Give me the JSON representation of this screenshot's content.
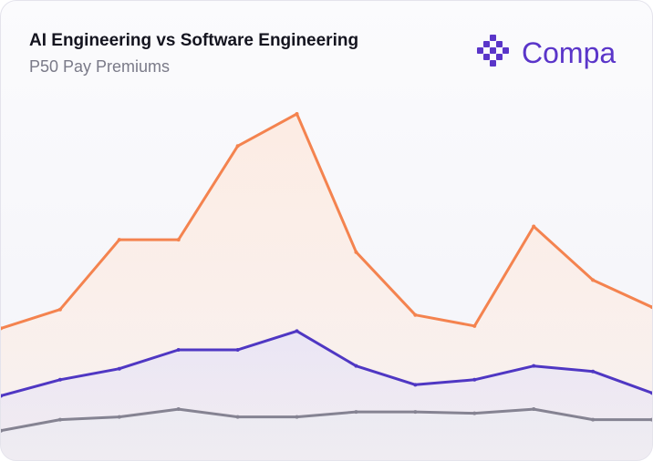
{
  "header": {
    "title": "AI Engineering vs Software Engineering",
    "subtitle": "P50 Pay Premiums"
  },
  "brand": {
    "name": "Compa",
    "logo_icon": "compa-grid-logo-icon",
    "color": "#5a35c9"
  },
  "chart_data": {
    "type": "area",
    "title": "AI Engineering vs Software Engineering",
    "subtitle": "P50 Pay Premiums",
    "x": [
      1,
      2,
      3,
      4,
      5,
      6,
      7,
      8,
      9,
      10,
      11,
      12
    ],
    "xlabel": "",
    "ylabel": "",
    "ylim": [
      0,
      100
    ],
    "grid": false,
    "legend": "none",
    "series": [
      {
        "name": "series-high",
        "color": "#f4834f",
        "fill": "#fcebe2",
        "values": [
          28.7,
          32.8,
          48.0,
          48.0,
          68.4,
          75.4,
          45.3,
          31.6,
          29.2,
          50.9,
          39.2,
          33.3
        ]
      },
      {
        "name": "series-mid",
        "color": "#4f37c3",
        "fill": "#e9e5f5",
        "values": [
          14.0,
          17.5,
          19.9,
          24.0,
          24.0,
          28.1,
          20.5,
          16.4,
          17.5,
          20.5,
          19.3,
          14.6
        ]
      },
      {
        "name": "series-low",
        "color": "#858392",
        "fill": "#ecebf2",
        "values": [
          6.4,
          8.8,
          9.4,
          11.1,
          9.4,
          9.4,
          10.5,
          10.5,
          10.2,
          11.1,
          8.8,
          8.8
        ]
      }
    ]
  }
}
